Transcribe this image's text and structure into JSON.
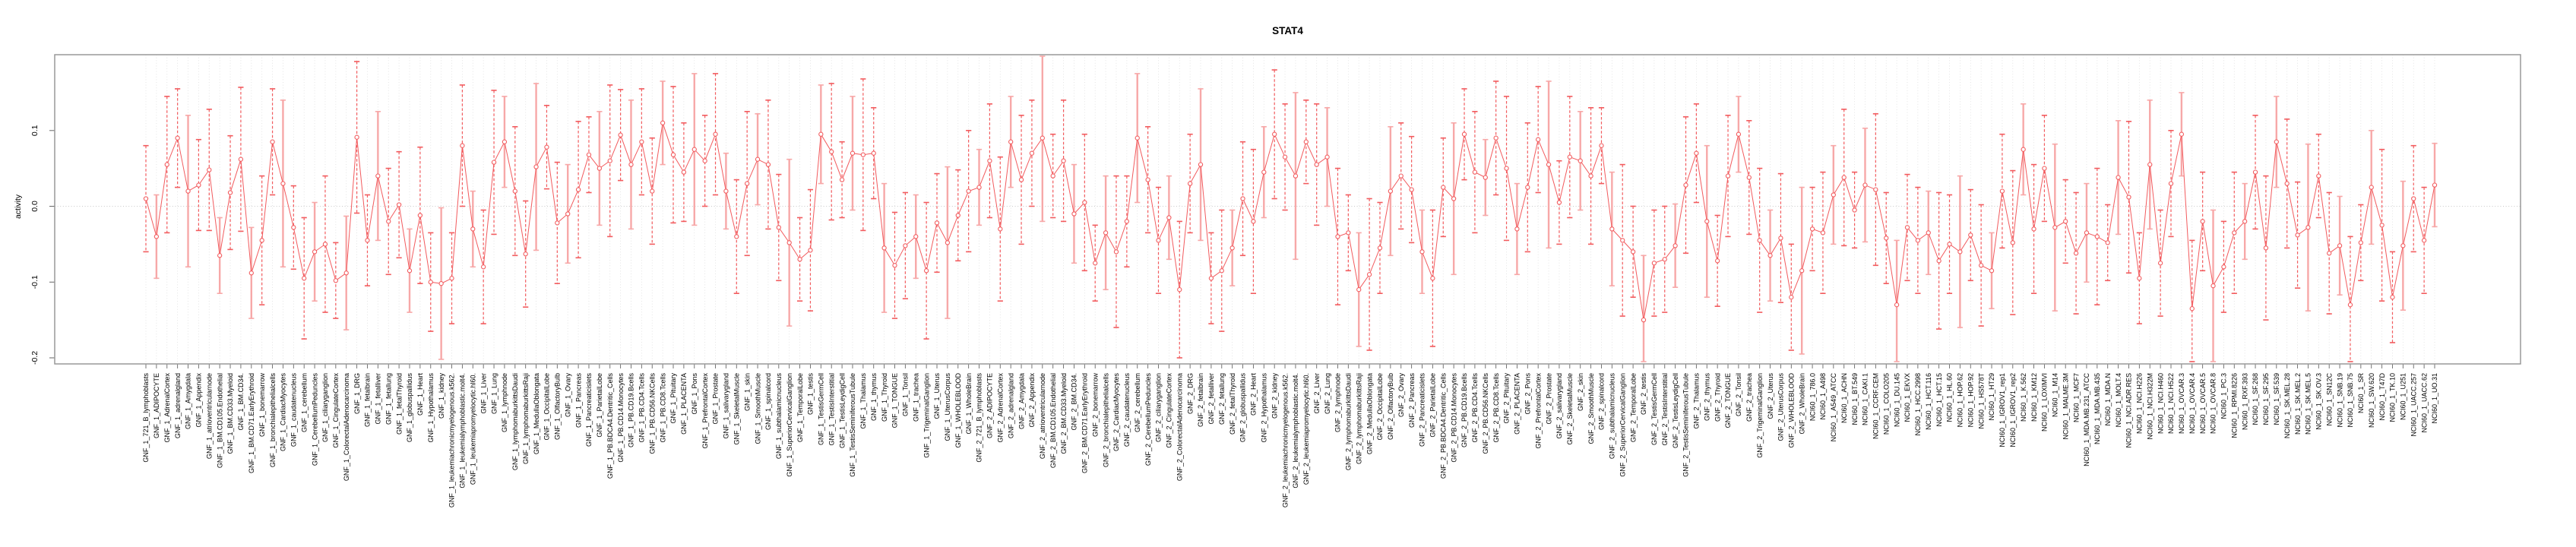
{
  "chart_data": {
    "type": "line",
    "error_bars": true,
    "title": "STAT4",
    "xlabel": "",
    "ylabel": "activity",
    "ylim": [
      -0.208,
      0.2
    ],
    "yticks": [
      0.1,
      0.0,
      -0.1,
      -0.2
    ],
    "grid": "vertical-dotted-per-sample, dotted-zero-line",
    "legend": "none",
    "colors": {
      "red": "#f25b5e",
      "pale": "#f7a8a8",
      "grid": "#dedede",
      "zero": "#c9c9c9",
      "box": "#999999",
      "tick": "#666666",
      "text": "#000000"
    },
    "categories": [
      "GNF_1_721_B_lymphoblasts",
      "GNF_1_ADIPOCYTE",
      "GNF_1_AdrenalCortex",
      "GNF_1_adrenalgland",
      "GNF_1_Amygdala",
      "GNF_1_Appendix",
      "GNF_1_atrioventricularnode",
      "GNF_1_BM.CD105.Endothelial",
      "GNF_1_BM.CD33.Myeloid",
      "GNF_1_BM.CD34.",
      "GNF_1_BM.CD71.EarlyErythroid",
      "GNF_1_bonemarrow",
      "GNF_1_bronchialepithelialcells",
      "GNF_1_CardiacMyocytes",
      "GNF_1_caudatenucleus",
      "GNF_1_cerebellum",
      "GNF_1_CerebellumPeduncles",
      "GNF_1_ciliaryganglion",
      "GNF_1_CingulateCortex",
      "GNF_1_ColorectalAdenocarcinoma",
      "GNF_1_DRG",
      "GNF_1_fetalbrain",
      "GNF_1_fetalliver",
      "GNF_1_fetallung",
      "GNF_1_fetalThyroid",
      "GNF_1_globuspallidus",
      "GNF_1_Heart",
      "GNF_1_Hypothalamus",
      "GNF_1_kidney",
      "GNF_1_leukemiachronicmyelogenous.k562.",
      "GNF_1_leukemialymphoblastic.molt4.",
      "GNF_1_leukemiapromyelocytic.hl60.",
      "GNF_1_Liver",
      "GNF_1_Lung",
      "GNF_1_lymphnode",
      "GNF_1_lymphomaburkittsDaudi",
      "GNF_1_lymphomaburkittsRaji",
      "GNF_1_MedullaOblongata",
      "GNF_1_OccipitalLobe",
      "GNF_1_OlfactoryBulb",
      "GNF_1_Ovary",
      "GNF_1_Pancreas",
      "GNF_1_Pancreaticislets",
      "GNF_1_ParietalLobe",
      "GNF_1_PB.BDCA4.Dentritic_Cells",
      "GNF_1_PB.CD14.Monocytes",
      "GNF_1_PB.CD19.Bcells",
      "GNF_1_PB.CD4.Tcells",
      "GNF_1_PB.CD56.NKCells",
      "GNF_1_PB.CD8.Tcells",
      "GNF_1_Pituitary",
      "GNF_1_PLACENTA",
      "GNF_1_Pons",
      "GNF_1_PrefrontalCortex",
      "GNF_1_Prostate",
      "GNF_1_salivarygland",
      "GNF_1_SkeletalMuscle",
      "GNF_1_skin",
      "GNF_1_SmoothMuscle",
      "GNF_1_spinalcord",
      "GNF_1_subthalamicnucleus",
      "GNF_1_SuperiorCervicalGanglion",
      "GNF_1_TemporalLobe",
      "GNF_1_testis",
      "GNF_1_TestisGermCell",
      "GNF_1_TestisInterstitial",
      "GNF_1_TestisLeydigCell",
      "GNF_1_TestisSeminiferousTubule",
      "GNF_1_Thalamus",
      "GNF_1_thymus",
      "GNF_1_Thyroid",
      "GNF_1_TONGUE",
      "GNF_1_Tonsil",
      "GNF_1_trachea",
      "GNF_1_TrigeminalGanglion",
      "GNF_1_Uterus",
      "GNF_1_UterusCorpus",
      "GNF_1_WHOLEBLOOD",
      "GNF_1_WholeBrain",
      "GNF_2_721_B_lymphoblasts",
      "GNF_2_ADIPOCYTE",
      "GNF_2_AdrenalCortex",
      "GNF_2_adrenalgland",
      "GNF_2_Amygdala",
      "GNF_2_Appendix",
      "GNF_2_atrioventricularnode",
      "GNF_2_BM.CD105.Endothelial",
      "GNF_2_BM.CD33.Myeloid",
      "GNF_2_BM.CD34.",
      "GNF_2_BM.CD71.EarlyErythroid",
      "GNF_2_bonemarrow",
      "GNF_2_bronchialepithelialcells",
      "GNF_2_CardiacMyocytes",
      "GNF_2_caudatenucleus",
      "GNF_2_cerebellum",
      "GNF_2_CerebellumPeduncles",
      "GNF_2_ciliaryganglion",
      "GNF_2_CingulateCortex",
      "GNF_2_ColorectalAdenocarcinoma",
      "GNF_2_DRG",
      "GNF_2_fetalbrain",
      "GNF_2_fetalliver",
      "GNF_2_fetallung",
      "GNF_2_fetalThyroid",
      "GNF_2_globuspallidus",
      "GNF_2_Heart",
      "GNF_2_Hypothalamus",
      "GNF_2_kidney",
      "GNF_2_leukemiachronicmyelogenous.k562.",
      "GNF_2_leukemialymphoblastic.molt4.",
      "GNF_2_leukemiapromyelocytic.hl60.",
      "GNF_2_Liver",
      "GNF_2_Lung",
      "GNF_2_lymphnode",
      "GNF_2_lymphomaburkittsDaudi",
      "GNF_2_lymphomaburkittsRaji",
      "GNF_2_MedullaOblongata",
      "GNF_2_OccipitalLobe",
      "GNF_2_OlfactoryBulb",
      "GNF_2_Ovary",
      "GNF_2_Pancreas",
      "GNF_2_Pancreaticislets",
      "GNF_2_ParietalLobe",
      "GNF_2_PB.BDCA4.Dentritic_Cells",
      "GNF_2_PB.CD14.Monocytes",
      "GNF_2_PB.CD19.Bcells",
      "GNF_2_PB.CD4.Tcells",
      "GNF_2_PB.CD56.NKCells",
      "GNF_2_PB.CD8.Tcells",
      "GNF_2_Pituitary",
      "GNF_2_PLACENTA",
      "GNF_2_Pons",
      "GNF_2_PrefrontalCortex",
      "GNF_2_Prostate",
      "GNF_2_salivarygland",
      "GNF_2_SkeletalMuscle",
      "GNF_2_skin",
      "GNF_2_SmoothMuscle",
      "GNF_2_spinalcord",
      "GNF_2_subthalamicnucleus",
      "GNF_2_SuperiorCervicalGanglion",
      "GNF_2_TemporalLobe",
      "GNF_2_testis",
      "GNF_2_TestisGermCell",
      "GNF_2_TestisInterstitial",
      "GNF_2_TestisLeydigCell",
      "GNF_2_TestisSeminiferousTubule",
      "GNF_2_Thalamus",
      "GNF_2_thymus",
      "GNF_2_Thyroid",
      "GNF_2_TONGUE",
      "GNF_2_Tonsil",
      "GNF_2_trachea",
      "GNF_2_TrigeminalGanglion",
      "GNF_2_Uterus",
      "GNF_2_UterusCorpus",
      "GNF_2_WHOLEBLOOD",
      "GNF_2_WholeBrain",
      "NCI60_1_786.0",
      "NCI60_1_A498",
      "NCI60_1_A549_ATCC",
      "NCI60_1_ACHN",
      "NCI60_1_BT.549",
      "NCI60_1_CAKI.1",
      "NCI60_1_CCRF.CEM",
      "NCI60_1_COLO205",
      "NCI60_1_DU.145",
      "NCI60_1_EKVX",
      "NCI60_1_HCC.2998",
      "NCI60_1_HCT.116",
      "NCI60_1_HCT.15",
      "NCI60_1_HL.60",
      "NCI60_1_HOP.62",
      "NCI60_1_HOP.92",
      "NCI60_1_HS578T",
      "NCI60_1_HT29",
      "NCI60_1_IGROV1_rep1",
      "NCI60_1_IGROV1_rep2",
      "NCI60_1_K.562",
      "NCI60_1_KM12",
      "NCI60_1_LOXIMVI",
      "NCI60_1_M14",
      "NCI60_1_MALME.3M",
      "NCI60_1_MCF7",
      "NCI60_1_MDA.MB.231_ATCC",
      "NCI60_1_MDA.MB.435",
      "NCI60_1_MDA.N",
      "NCI60_1_MOLT.4",
      "NCI60_1_NCI.ADR.RES",
      "NCI60_1_NCI.H226",
      "NCI60_1_NCI.H322M",
      "NCI60_1_NCI.H460",
      "NCI60_1_NCI.H522",
      "NCI60_1_OVCAR.3",
      "NCI60_1_OVCAR.4",
      "NCI60_1_OVCAR.5",
      "NCI60_1_OVCAR.8",
      "NCI60_1_PC.3",
      "NCI60_1_RPMI.8226",
      "NCI60_1_RXF.393",
      "NCI60_1_SF.268",
      "NCI60_1_SF.295",
      "NCI60_1_SF.539",
      "NCI60_1_SK.MEL.28",
      "NCI60_1_SK.MEL.2",
      "NCI60_1_SK.MEL.5",
      "NCI60_1_SK.OV.3",
      "NCI60_1_SN12C",
      "NCI60_1_SNB.19",
      "NCI60_1_SNB.75",
      "NCI60_1_SR",
      "NCI60_1_SW.620",
      "NCI60_1_T47D",
      "NCI60_1_TK.10",
      "NCI60_1_U251",
      "NCI60_1_UACC.257",
      "NCI60_1_UACC.62",
      "NCI60_1_UO.31"
    ],
    "means": [
      0.01,
      -0.04,
      0.055,
      0.09,
      0.02,
      0.028,
      0.048,
      -0.065,
      0.018,
      0.062,
      -0.088,
      -0.045,
      0.085,
      0.03,
      -0.028,
      -0.095,
      -0.06,
      -0.05,
      -0.098,
      -0.088,
      0.091,
      -0.045,
      0.04,
      -0.02,
      0.002,
      -0.085,
      -0.012,
      -0.1,
      -0.102,
      -0.095,
      0.08,
      -0.03,
      -0.08,
      0.058,
      0.085,
      0.02,
      -0.063,
      0.052,
      0.078,
      -0.022,
      -0.01,
      0.022,
      0.068,
      0.05,
      0.06,
      0.094,
      0.055,
      0.085,
      0.02,
      0.11,
      0.068,
      0.045,
      0.075,
      0.06,
      0.095,
      0.02,
      -0.04,
      0.03,
      0.062,
      0.055,
      -0.028,
      -0.048,
      -0.07,
      -0.058,
      0.095,
      0.072,
      0.035,
      0.07,
      0.068,
      0.07,
      -0.055,
      -0.078,
      -0.052,
      -0.04,
      -0.085,
      -0.022,
      -0.048,
      -0.012,
      0.02,
      0.025,
      0.06,
      -0.03,
      0.085,
      0.035,
      0.07,
      0.09,
      0.04,
      0.06,
      -0.01,
      0.005,
      -0.075,
      -0.035,
      -0.06,
      -0.02,
      0.09,
      0.035,
      -0.045,
      -0.015,
      -0.11,
      0.03,
      0.055,
      -0.095,
      -0.085,
      -0.055,
      0.01,
      -0.02,
      0.045,
      0.095,
      0.065,
      0.04,
      0.085,
      0.055,
      0.065,
      -0.04,
      -0.035,
      -0.11,
      -0.09,
      -0.055,
      0.02,
      0.04,
      0.022,
      -0.06,
      -0.095,
      0.025,
      0.01,
      0.095,
      0.045,
      0.038,
      0.09,
      0.05,
      -0.03,
      0.025,
      0.088,
      0.055,
      0.005,
      0.065,
      0.06,
      0.04,
      0.08,
      -0.03,
      -0.045,
      -0.06,
      -0.15,
      -0.075,
      -0.07,
      -0.052,
      0.028,
      0.07,
      -0.02,
      -0.072,
      0.04,
      0.095,
      0.038,
      -0.045,
      -0.065,
      -0.042,
      -0.12,
      -0.085,
      -0.03,
      -0.035,
      0.015,
      0.038,
      -0.005,
      0.028,
      0.022,
      -0.042,
      -0.13,
      -0.028,
      -0.045,
      -0.035,
      -0.072,
      -0.05,
      -0.06,
      -0.038,
      -0.078,
      -0.085,
      0.02,
      -0.048,
      0.075,
      -0.03,
      0.05,
      -0.028,
      -0.02,
      -0.062,
      -0.035,
      -0.04,
      -0.048,
      0.038,
      0.012,
      -0.095,
      0.055,
      -0.075,
      0.03,
      0.095,
      -0.135,
      -0.02,
      -0.105,
      -0.08,
      -0.035,
      -0.02,
      0.045,
      -0.055,
      0.085,
      0.03,
      -0.038,
      -0.028,
      0.04,
      -0.062,
      -0.052,
      -0.13,
      -0.048,
      0.025,
      -0.025,
      -0.12,
      -0.052,
      0.01,
      -0.045,
      0.028
    ],
    "errors": [
      0.07,
      0.055,
      0.09,
      0.065,
      0.1,
      0.06,
      0.08,
      0.05,
      0.075,
      0.095,
      0.06,
      0.085,
      0.07,
      0.11,
      0.055,
      0.08,
      0.065,
      0.09,
      0.05,
      0.075,
      0.1,
      0.06,
      0.085,
      0.07,
      0.07,
      0.055,
      0.09,
      0.065,
      0.1,
      0.06,
      0.08,
      0.05,
      0.075,
      0.095,
      0.06,
      0.085,
      0.07,
      0.11,
      0.055,
      0.08,
      0.065,
      0.09,
      0.05,
      0.075,
      0.1,
      0.06,
      0.085,
      0.07,
      0.07,
      0.055,
      0.09,
      0.065,
      0.1,
      0.06,
      0.08,
      0.05,
      0.075,
      0.095,
      0.06,
      0.085,
      0.07,
      0.11,
      0.055,
      0.08,
      0.065,
      0.09,
      0.05,
      0.075,
      0.1,
      0.06,
      0.085,
      0.07,
      0.07,
      0.055,
      0.09,
      0.065,
      0.1,
      0.06,
      0.08,
      0.05,
      0.075,
      0.095,
      0.06,
      0.085,
      0.07,
      0.11,
      0.055,
      0.08,
      0.065,
      0.09,
      0.05,
      0.075,
      0.1,
      0.06,
      0.085,
      0.07,
      0.07,
      0.055,
      0.09,
      0.065,
      0.1,
      0.06,
      0.08,
      0.05,
      0.075,
      0.095,
      0.06,
      0.085,
      0.07,
      0.11,
      0.055,
      0.08,
      0.065,
      0.09,
      0.05,
      0.075,
      0.1,
      0.06,
      0.085,
      0.07,
      0.07,
      0.055,
      0.09,
      0.065,
      0.1,
      0.06,
      0.08,
      0.05,
      0.075,
      0.095,
      0.06,
      0.085,
      0.07,
      0.11,
      0.055,
      0.08,
      0.065,
      0.09,
      0.05,
      0.075,
      0.1,
      0.06,
      0.085,
      0.07,
      0.07,
      0.055,
      0.09,
      0.065,
      0.1,
      0.06,
      0.08,
      0.05,
      0.075,
      0.095,
      0.06,
      0.085,
      0.07,
      0.11,
      0.055,
      0.08,
      0.065,
      0.09,
      0.05,
      0.075,
      0.1,
      0.06,
      0.085,
      0.07,
      0.07,
      0.055,
      0.09,
      0.065,
      0.1,
      0.06,
      0.08,
      0.05,
      0.075,
      0.095,
      0.06,
      0.085,
      0.07,
      0.11,
      0.055,
      0.08,
      0.065,
      0.09,
      0.05,
      0.075,
      0.1,
      0.06,
      0.085,
      0.07,
      0.07,
      0.055,
      0.09,
      0.065,
      0.1,
      0.06,
      0.08,
      0.05,
      0.075,
      0.095,
      0.06,
      0.085,
      0.07,
      0.11,
      0.055,
      0.08,
      0.065,
      0.09,
      0.05,
      0.075,
      0.1,
      0.06,
      0.085,
      0.07,
      0.07,
      0.055
    ]
  }
}
